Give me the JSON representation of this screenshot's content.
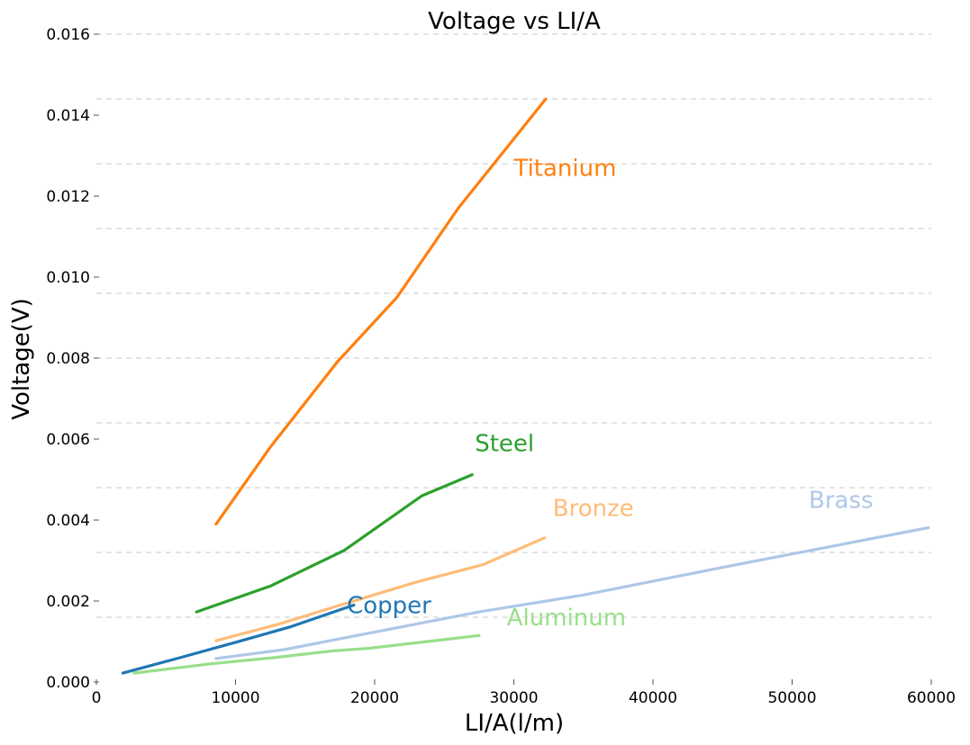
{
  "chart_data": {
    "type": "line",
    "title": "Voltage vs LI/A",
    "xlabel": "LI/A(l/m)",
    "ylabel": "Voltage(V)",
    "xlim": [
      0,
      60000
    ],
    "ylim": [
      0,
      0.016
    ],
    "x_ticks": [
      "0",
      "10000",
      "20000",
      "30000",
      "40000",
      "50000",
      "60000"
    ],
    "y_ticks": [
      "0.000",
      "0.002",
      "0.004",
      "0.006",
      "0.008",
      "0.010",
      "0.012",
      "0.014",
      "0.016"
    ],
    "grid": "horizontal dashed",
    "legend": "inline labels",
    "series": [
      {
        "name": "Titanium",
        "color": "#ff7f0e",
        "x": [
          8600,
          12500,
          17300,
          21600,
          26000,
          32300
        ],
        "y": [
          0.0039,
          0.0058,
          0.0079,
          0.0095,
          0.0117,
          0.0144
        ],
        "label_at": [
          30000,
          0.0125
        ]
      },
      {
        "name": "Steel",
        "color": "#2ca02c",
        "x": [
          7200,
          12500,
          17800,
          23400,
          27000
        ],
        "y": [
          0.00173,
          0.00237,
          0.00325,
          0.0046,
          0.00512
        ],
        "label_at": [
          27200,
          0.0057
        ]
      },
      {
        "name": "Bronze",
        "color": "#ffbb78",
        "x": [
          8600,
          13000,
          18000,
          23000,
          27800,
          32200
        ],
        "y": [
          0.00102,
          0.00142,
          0.00195,
          0.00247,
          0.0029,
          0.00356
        ],
        "label_at": [
          32800,
          0.0041
        ]
      },
      {
        "name": "Copper",
        "color": "#1f77b4",
        "x": [
          1900,
          6000,
          10000,
          14000,
          18500
        ],
        "y": [
          0.00022,
          0.0006,
          0.00098,
          0.00137,
          0.0019
        ],
        "label_at": [
          18000,
          0.0017
        ]
      },
      {
        "name": "Brass",
        "color": "#aec7e8",
        "x": [
          8600,
          13500,
          17500,
          27500,
          35000,
          45000,
          59800
        ],
        "y": [
          0.00058,
          0.0008,
          0.00107,
          0.00173,
          0.00215,
          0.00283,
          0.00381
        ],
        "label_at": [
          51200,
          0.0043
        ]
      },
      {
        "name": "Aluminum",
        "color": "#98df8a",
        "x": [
          2700,
          8200,
          12700,
          17000,
          19500,
          23500,
          27500
        ],
        "y": [
          0.00022,
          0.00045,
          0.0006,
          0.00077,
          0.00083,
          0.00099,
          0.00115
        ],
        "label_at": [
          29500,
          0.0014
        ]
      }
    ]
  }
}
